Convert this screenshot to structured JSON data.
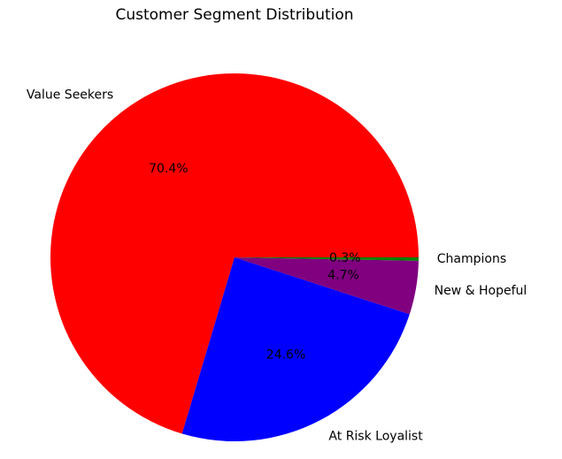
{
  "chart_data": {
    "type": "pie",
    "title": "Customer Segment Distribution",
    "slices": [
      {
        "label": "Value Seekers",
        "value": 70.4,
        "pct_label": "70.4%",
        "color": "#ff0000"
      },
      {
        "label": "At Risk Loyalist",
        "value": 24.6,
        "pct_label": "24.6%",
        "color": "#0000ff"
      },
      {
        "label": "New & Hopeful",
        "value": 4.7,
        "pct_label": "4.7%",
        "color": "#800080"
      },
      {
        "label": "Champions",
        "value": 0.3,
        "pct_label": "0.3%",
        "color": "#008000"
      }
    ],
    "start_angle_deg": 0,
    "direction": "counterclockwise"
  }
}
